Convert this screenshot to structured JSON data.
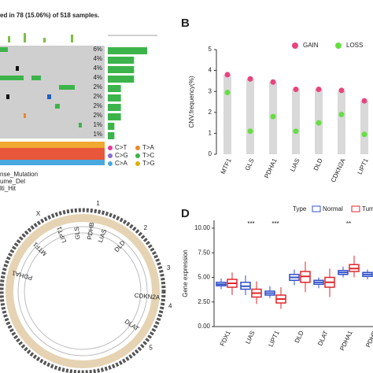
{
  "chart_data": [
    {
      "type": "oncoplot",
      "panel": "A",
      "title": "ed in 78 (15.06%) of 518 samples.",
      "values": [
        6,
        4,
        4,
        4,
        2,
        2,
        2,
        2,
        1,
        1
      ],
      "value_labels": [
        "6%",
        "4%",
        "4%",
        "4%",
        "2%",
        "2%",
        "2%",
        "2%",
        "1%",
        "1%"
      ],
      "legend": [
        {
          "name": "C>T",
          "color": "#e6399b"
        },
        {
          "name": "C>G",
          "color": "#8a6bd1"
        },
        {
          "name": "C>A",
          "color": "#4aa8e0"
        },
        {
          "name": "T>A",
          "color": "#e68a2e"
        },
        {
          "name": "T>C",
          "color": "#3cb44b"
        },
        {
          "name": "T>G",
          "color": "#d8b200"
        }
      ],
      "variant_legend": [
        "nse_Mutation",
        "ume_Del",
        "lti_Hit"
      ]
    },
    {
      "type": "dot",
      "panel": "B",
      "y_label": "CNV.frequency(%)",
      "categories": [
        "MTF1",
        "GLS",
        "PDHA1",
        "LIAS",
        "DLD",
        "CDKN2A",
        "LIPT1"
      ],
      "series": [
        {
          "name": "GAIN",
          "color": "#e8457b",
          "values": [
            3.8,
            3.6,
            3.45,
            3.1,
            3.1,
            3.05,
            2.55
          ]
        },
        {
          "name": "LOSS",
          "color": "#66dd44",
          "values": [
            2.95,
            1.1,
            1.8,
            1.1,
            1.5,
            1.9,
            0.95
          ]
        }
      ],
      "ylim": [
        0,
        5
      ],
      "yticks": [
        0,
        1,
        2,
        3,
        4,
        5
      ]
    },
    {
      "type": "circos",
      "panel": "C",
      "genes": [
        "PDHA1",
        "MTF1",
        "LIPT1",
        "GLS",
        "PDHB",
        "LIAS",
        "DLD",
        "CDKN2A",
        "DLAT"
      ],
      "chromosomes": [
        "X",
        "1",
        "2",
        "3",
        "4",
        "5"
      ]
    },
    {
      "type": "box",
      "panel": "D",
      "y_label": "Gene expression",
      "legend_title": "Type",
      "categories": [
        "FDX1",
        "LIAS",
        "LIPT1",
        "DLD",
        "DLAT",
        "PDHA1",
        "PDHB"
      ],
      "significance": [
        null,
        "***",
        "***",
        null,
        null,
        "**",
        null
      ],
      "series": [
        {
          "name": "Normal",
          "color": "#3050c8",
          "whislo": [
            3.8,
            3.2,
            2.9,
            4.2,
            3.9,
            5.0,
            4.8
          ],
          "q1": [
            4.15,
            3.8,
            3.2,
            4.7,
            4.3,
            5.3,
            5.1
          ],
          "median": [
            4.3,
            4.1,
            3.4,
            5.0,
            4.5,
            5.5,
            5.3
          ],
          "q3": [
            4.5,
            4.5,
            3.6,
            5.3,
            4.7,
            5.7,
            5.5
          ],
          "whishi": [
            4.9,
            5.2,
            4.1,
            5.8,
            5.0,
            6.1,
            5.8
          ]
        },
        {
          "name": "Tumo",
          "color": "#e0262b",
          "whislo": [
            3.2,
            2.3,
            1.8,
            3.5,
            3.0,
            5.0,
            null
          ],
          "q1": [
            4.0,
            3.0,
            2.4,
            4.5,
            4.0,
            5.6,
            null
          ],
          "median": [
            4.4,
            3.4,
            2.8,
            5.1,
            4.5,
            5.9,
            null
          ],
          "q3": [
            4.8,
            3.8,
            3.2,
            5.6,
            5.0,
            6.3,
            null
          ],
          "whishi": [
            5.5,
            4.6,
            4.0,
            6.6,
            5.9,
            7.2,
            null
          ]
        }
      ],
      "ylim": [
        0,
        10.8
      ],
      "yticks": [
        {
          "value": 0,
          "label": "0.00"
        },
        {
          "value": 2.5,
          "label": "2.50"
        },
        {
          "value": 5,
          "label": "5.00"
        },
        {
          "value": 7.5,
          "label": "7.50"
        },
        {
          "value": 10,
          "label": "10.00"
        }
      ]
    }
  ]
}
